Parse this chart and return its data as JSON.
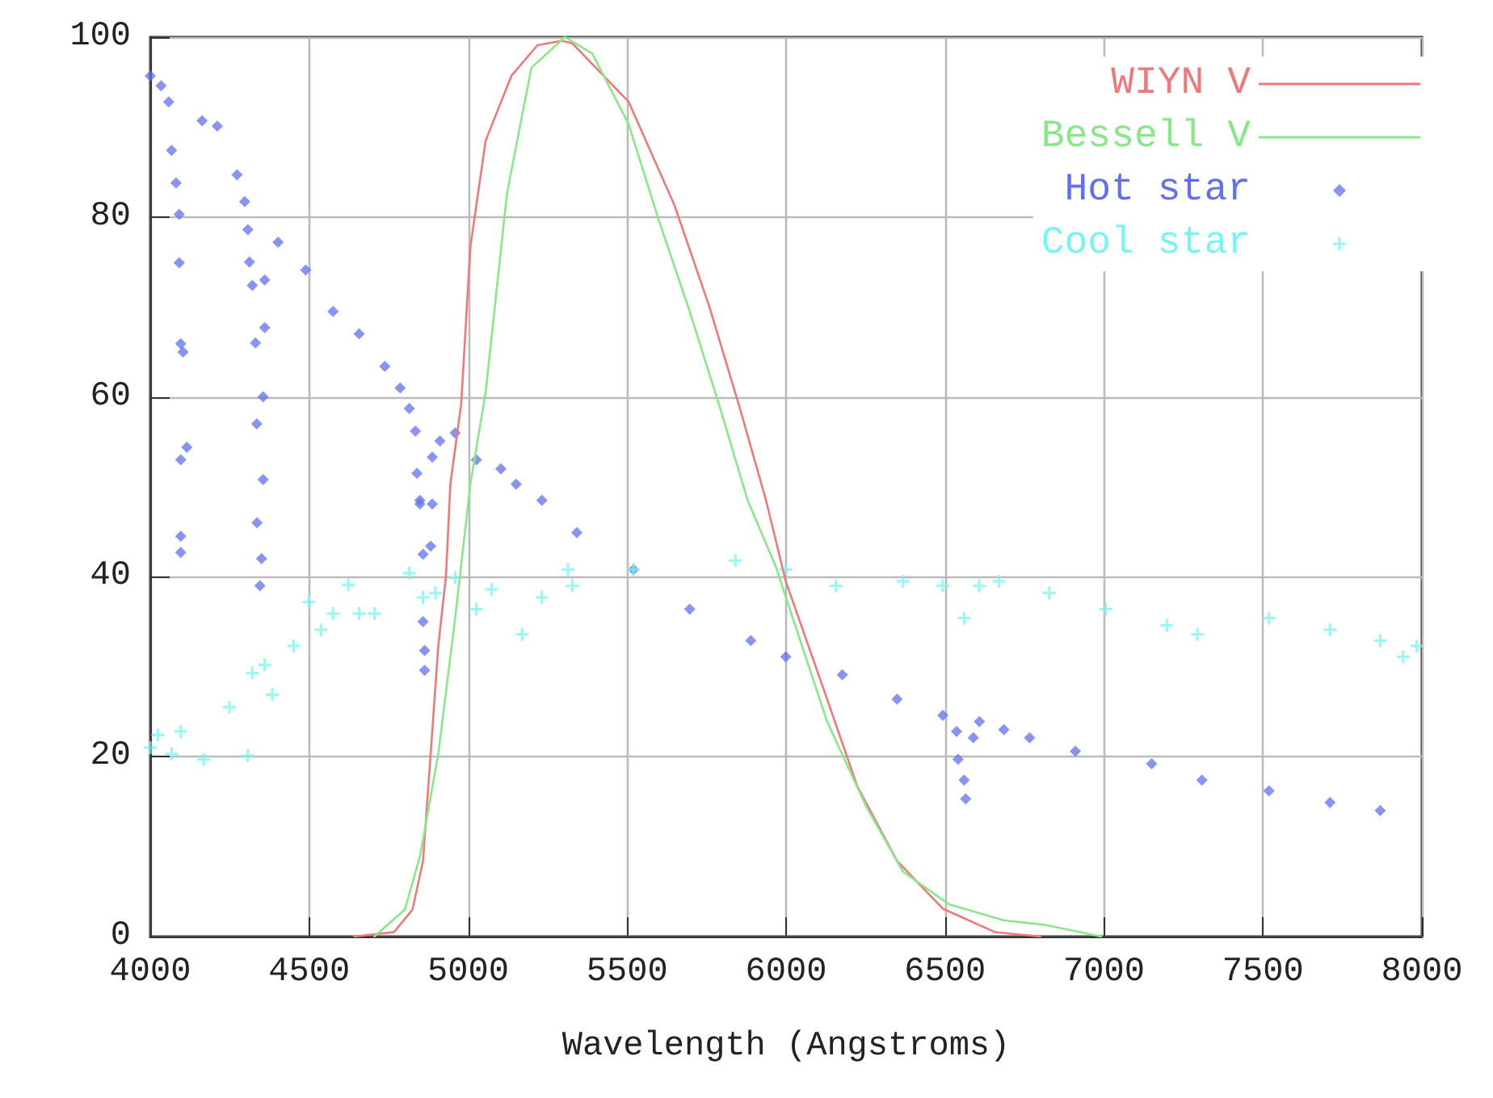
{
  "chart_data": {
    "type": "line",
    "xlabel": "Wavelength (Angstroms)",
    "xlim": [
      4000,
      8000
    ],
    "xticks": [
      4000,
      4500,
      5000,
      5500,
      6000,
      6500,
      7000,
      7500,
      8000
    ],
    "ylim": [
      0,
      100
    ],
    "yticks": [
      0,
      20,
      40,
      60,
      80,
      100
    ],
    "grid": true,
    "legend": "top right",
    "series": [
      {
        "name": "WIYN V",
        "marker": "none",
        "color": "#f07878",
        "x": [
          4642,
          4767,
          4825,
          4858,
          4882,
          4906,
          4930,
          4944,
          4978,
          5007,
          5055,
          5136,
          5218,
          5294,
          5328,
          5505,
          5649,
          5759,
          5855,
          5937,
          5999,
          6129,
          6224,
          6349,
          6493,
          6656,
          6800
        ],
        "values": [
          0,
          0.5,
          3,
          8.4,
          20.3,
          32.3,
          40,
          50.3,
          59.2,
          76.7,
          88.5,
          95.7,
          99.1,
          99.6,
          99.3,
          92.8,
          81.3,
          70,
          58.7,
          48.5,
          39.5,
          26.4,
          16.7,
          8.4,
          3.1,
          0.5,
          0
        ]
      },
      {
        "name": "Bessell V",
        "marker": "none",
        "color": "#88e888",
        "x": [
          4705,
          4801,
          4849,
          4906,
          4959,
          5007,
          5055,
          5122,
          5199,
          5304,
          5390,
          5505,
          5601,
          5697,
          5793,
          5879,
          5966,
          6129,
          6253,
          6368,
          6512,
          6685,
          6814,
          6991
        ],
        "values": [
          0,
          3,
          9,
          20.3,
          35.4,
          50.3,
          60.5,
          82.6,
          96.6,
          100,
          98.2,
          90.3,
          79.5,
          69.5,
          58.7,
          48.5,
          41.3,
          23.9,
          14.4,
          7.2,
          3.6,
          1.8,
          1.3,
          0
        ]
      },
      {
        "name": "Hot star",
        "type": "scatter",
        "marker": "diamond",
        "color": "#6070f0",
        "x": [
          4000,
          4034,
          4058,
          4067,
          4081,
          4091,
          4091,
          4096,
          4103,
          4115,
          4096,
          4096,
          4096,
          4163,
          4211,
          4273,
          4297,
          4307,
          4312,
          4321,
          4331,
          4360,
          4360,
          4355,
          4335,
          4355,
          4336,
          4350,
          4345,
          4402,
          4489,
          4575,
          4657,
          4738,
          4786,
          4815,
          4834,
          4839,
          4848,
          4848,
          4858,
          4858,
          4863,
          4863,
          4882,
          4887,
          4887,
          4911,
          4959,
          5026,
          5103,
          5151,
          5232,
          5342,
          5520,
          5697,
          5889,
          5999,
          6177,
          6349,
          6493,
          6536,
          6541,
          6560,
          6565,
          6589,
          6608,
          6685,
          6766,
          6910,
          7150,
          7308,
          7519,
          7711,
          7869
        ],
        "values": [
          95.7,
          94.6,
          92.8,
          87.4,
          83.8,
          80.3,
          74.9,
          65.9,
          65,
          54.4,
          53,
          44.5,
          42.7,
          90.7,
          90.1,
          84.7,
          81.7,
          78.6,
          75,
          72.4,
          66,
          67.7,
          73,
          60,
          57,
          50.8,
          46,
          42,
          39,
          77.2,
          74.1,
          69.5,
          67,
          63.4,
          61,
          58.7,
          56.2,
          51.5,
          48.5,
          48.1,
          42.5,
          35,
          31.8,
          29.6,
          43.4,
          48.1,
          53.3,
          55.1,
          56,
          53,
          52,
          50.3,
          48.5,
          44.9,
          40.8,
          36.4,
          32.9,
          31.1,
          29.1,
          26.4,
          24.6,
          22.8,
          19.7,
          17.4,
          15.3,
          22.1,
          23.9,
          23,
          22.1,
          20.6,
          19.2,
          17.4,
          16.2,
          14.9,
          14
        ]
      },
      {
        "name": "Cool star",
        "type": "scatter",
        "marker": "cross",
        "color": "#78f4f4",
        "x": [
          4000,
          4024,
          4067,
          4096,
          4168,
          4249,
          4307,
          4321,
          4360,
          4384,
          4451,
          4499,
          4537,
          4575,
          4623,
          4657,
          4705,
          4815,
          4858,
          4897,
          4959,
          5026,
          5074,
          5170,
          5232,
          5314,
          5328,
          5520,
          5841,
          5999,
          6157,
          6368,
          6493,
          6560,
          6608,
          6670,
          6828,
          7006,
          7198,
          7294,
          7519,
          7711,
          7869,
          7941,
          7984
        ],
        "values": [
          21,
          22.4,
          20.3,
          22.8,
          19.7,
          25.5,
          20.1,
          29.3,
          30.2,
          26.9,
          32.3,
          37.2,
          34.1,
          35.9,
          39.1,
          35.9,
          35.9,
          40.4,
          37.7,
          38.2,
          39.9,
          36.4,
          38.6,
          33.6,
          37.7,
          40.8,
          39,
          40.8,
          41.8,
          40.8,
          39,
          39.5,
          39,
          35.4,
          39,
          39.5,
          38.2,
          36.4,
          34.6,
          33.6,
          35.4,
          34.1,
          32.9,
          31.1,
          32.3
        ]
      }
    ]
  }
}
